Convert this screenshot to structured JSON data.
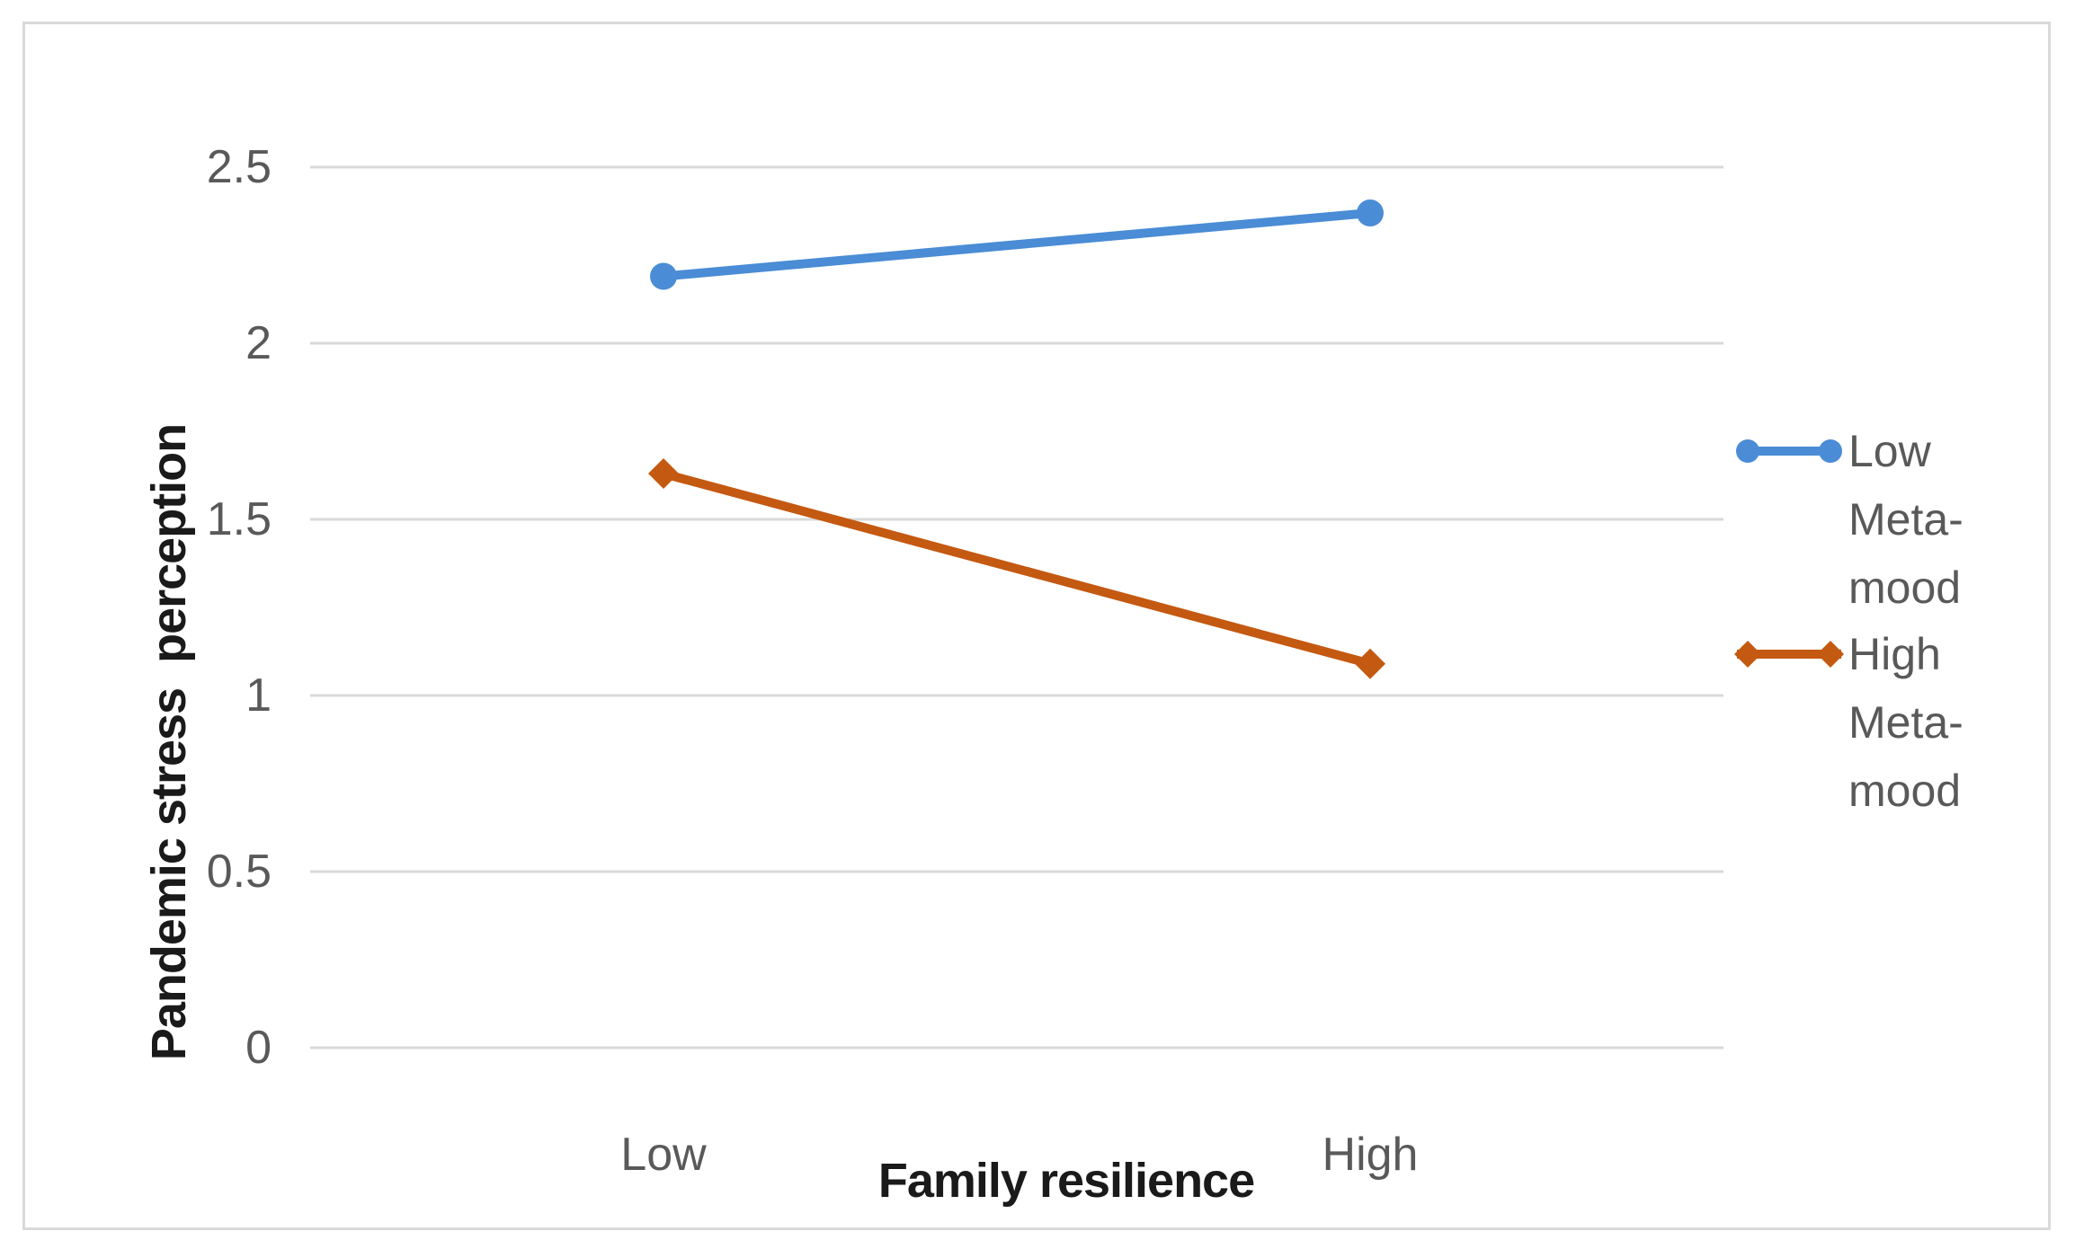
{
  "chart_data": {
    "type": "line",
    "title": "",
    "categories": [
      "Low",
      "High"
    ],
    "series": [
      {
        "name": "Low Meta-mood",
        "legend_lines": [
          "Low",
          "Meta-",
          "mood"
        ],
        "values": [
          2.19,
          2.37
        ],
        "color": "#4A8CD5",
        "marker": "circle"
      },
      {
        "name": "High Meta-mood",
        "legend_lines": [
          "High",
          "Meta-",
          "mood"
        ],
        "values": [
          1.63,
          1.09
        ],
        "color": "#C45911",
        "marker": "diamond"
      }
    ],
    "xlabel": "Family resilience",
    "ylabel": "Pandemic stress  perception",
    "y_ticks": [
      0,
      0.5,
      1,
      1.5,
      2,
      2.5
    ],
    "y_tick_labels": [
      "0",
      "0.5",
      "1",
      "1.5",
      "2",
      "2.5"
    ],
    "ylim": [
      0,
      2.5
    ],
    "grid": "horizontal",
    "legend_position": "right"
  },
  "colors": {
    "grid": "#d9d9d9",
    "frame_border": "#d9d9d9",
    "tick_text": "#595959",
    "axis_title_text": "#1a1a1a",
    "background": "#ffffff"
  }
}
